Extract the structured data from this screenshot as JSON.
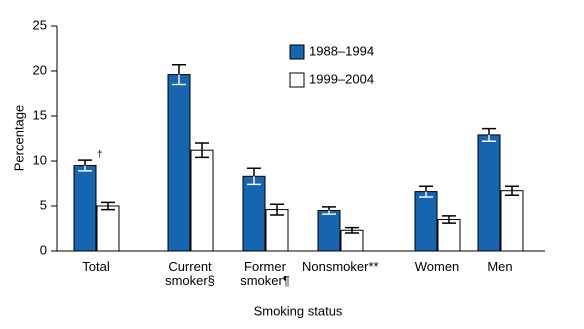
{
  "chart_data": {
    "type": "bar",
    "x_label": "Smoking status",
    "y_label": "Percentage",
    "categories": [
      "Total",
      "Current smoker§",
      "Former smoker¶",
      "Nonsmoker**",
      "Women",
      "Men"
    ],
    "series": [
      {
        "name": "1988–1994",
        "color": "#1565b0",
        "values": [
          9.5,
          19.6,
          8.3,
          4.5,
          6.6,
          12.9
        ],
        "errors": [
          0.6,
          1.1,
          0.9,
          0.4,
          0.6,
          0.7
        ]
      },
      {
        "name": "1999–2004",
        "color": "#ffffff",
        "values": [
          5.0,
          11.2,
          4.6,
          2.3,
          3.5,
          6.7
        ],
        "errors": [
          0.4,
          0.8,
          0.6,
          0.3,
          0.4,
          0.5
        ]
      }
    ],
    "annotations": [
      "†"
    ],
    "ylim": [
      0,
      25
    ],
    "yticks": [
      0,
      5,
      10,
      15,
      20,
      25
    ]
  }
}
